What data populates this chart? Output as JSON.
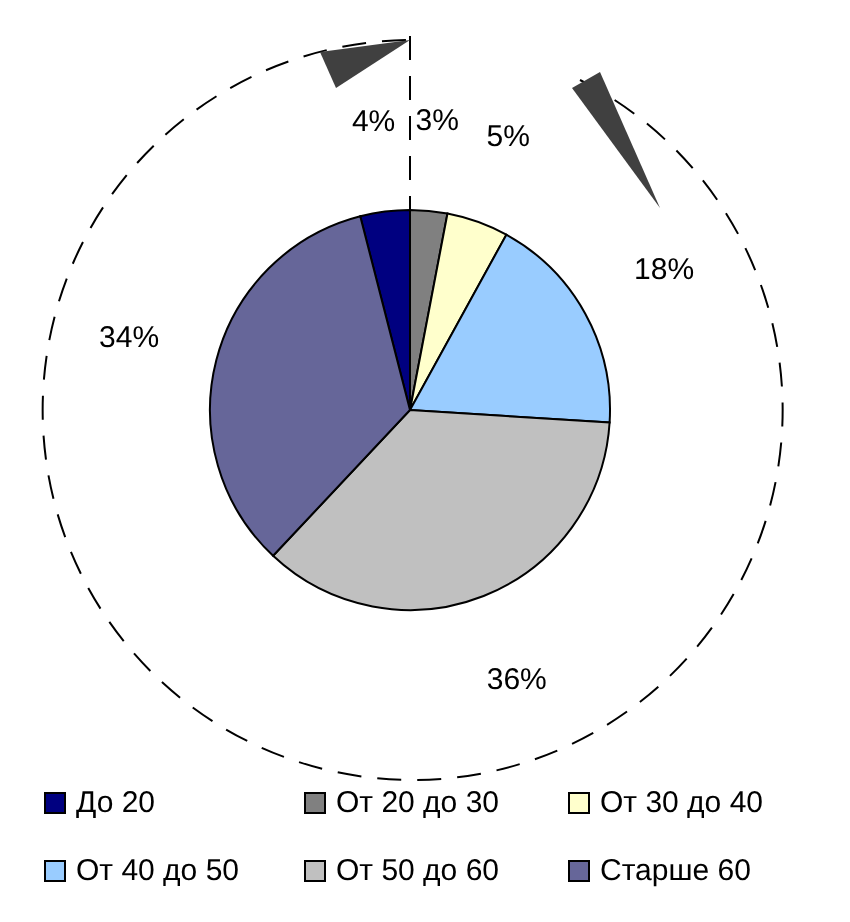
{
  "chart_data": {
    "type": "pie",
    "categories": [
      "До 20",
      "От 20 до 30",
      "От 30 до 40",
      "От 40 до 50",
      "От 50 до 60",
      "Старше 60"
    ],
    "values": [
      4,
      3,
      5,
      18,
      36,
      34
    ],
    "value_labels": [
      "4%",
      "3%",
      "5%",
      "18%",
      "36%",
      "34%"
    ],
    "colors": [
      "#000080",
      "#808080",
      "#ffffcc",
      "#99ccff",
      "#c0c0c0",
      "#666699"
    ],
    "legend": "bottom"
  }
}
